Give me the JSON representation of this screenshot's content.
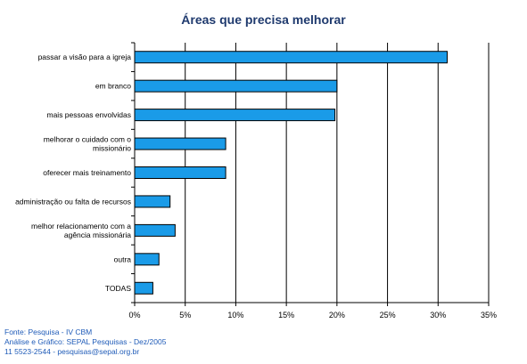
{
  "chart_data": {
    "type": "bar",
    "orientation": "horizontal",
    "title": "Áreas que precisa melhorar",
    "categories": [
      [
        "passar a visão para a igreja"
      ],
      [
        "em branco"
      ],
      [
        "mais pessoas envolvidas"
      ],
      [
        "melhorar o cuidado com o",
        "missionário"
      ],
      [
        "oferecer mais treinamento"
      ],
      [
        "administração ou falta de recursos"
      ],
      [
        "melhor relacionamento com a",
        "agência missionária"
      ],
      [
        "outra"
      ],
      [
        "TODAS"
      ]
    ],
    "values": [
      30.9,
      20,
      19.8,
      9,
      9,
      3.5,
      4,
      2.4,
      1.8
    ],
    "xlim": [
      0,
      35
    ],
    "xticks": [
      "0%",
      "5%",
      "10%",
      "15%",
      "20%",
      "25%",
      "30%",
      "35%"
    ],
    "grid": "vertical",
    "colors": {
      "bar": "#1a9be8",
      "bar_edge": "#000000",
      "grid": "#000000"
    }
  },
  "footer": {
    "line1": "Fonte: Pesquisa - IV CBM",
    "line2": "Análise e Gráfico: SEPAL Pesquisas - Dez/2005",
    "line3": "11 5523-2544 - pesquisas@sepal.org.br"
  }
}
